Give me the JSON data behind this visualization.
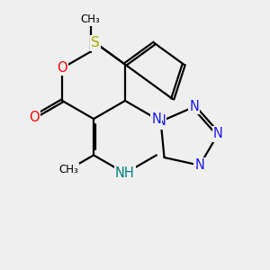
{
  "background_color": "#efefef",
  "bond_color": "#000000",
  "bond_width": 1.6,
  "dbo": 0.055,
  "N_color": "#1919ff",
  "NH_color": "#008080",
  "O_color": "#ff0000",
  "S_color": "#aaaa00",
  "figsize": [
    3.0,
    3.0
  ],
  "dpi": 100,
  "xlim": [
    0,
    10
  ],
  "ylim": [
    0,
    10
  ]
}
